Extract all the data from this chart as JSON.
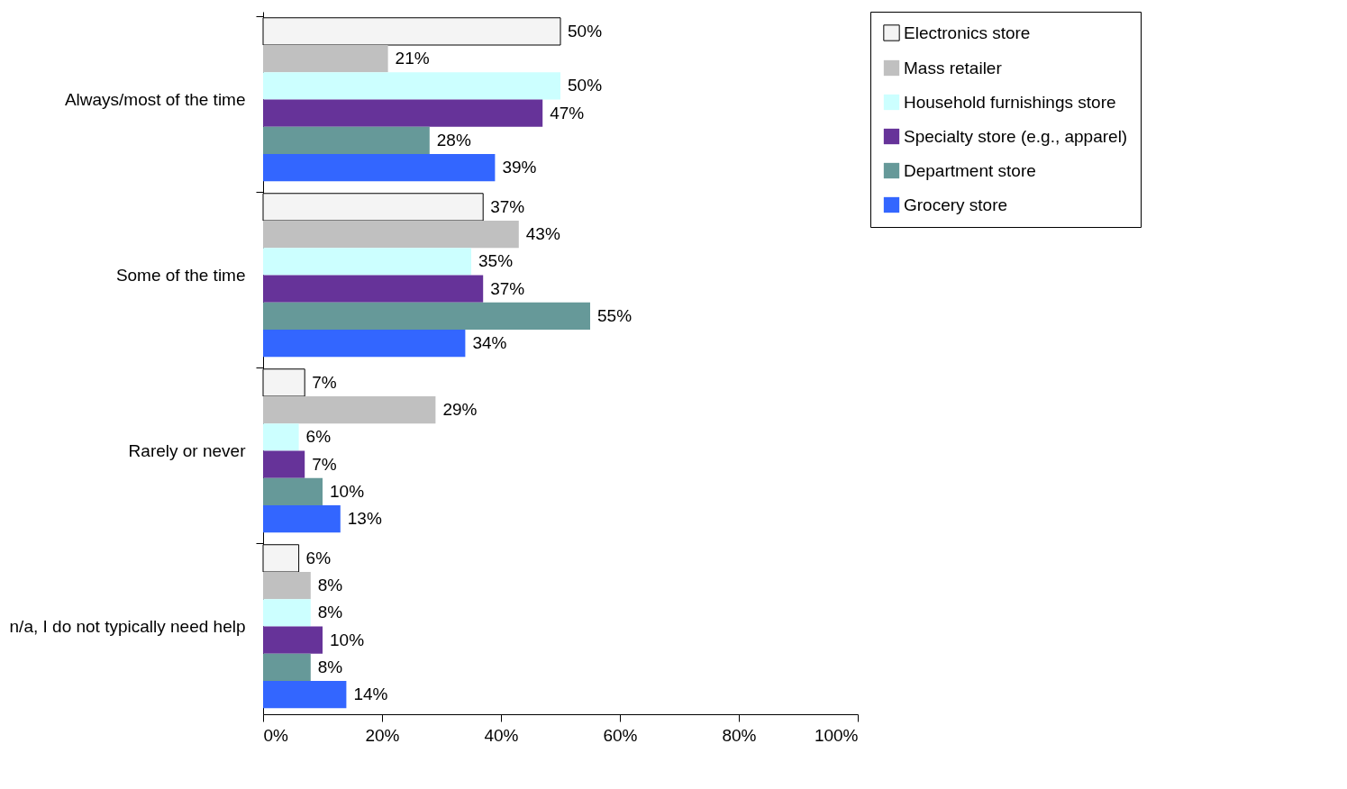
{
  "chart_data": {
    "type": "bar",
    "orientation": "horizontal",
    "categories": [
      "Always/most of the time",
      "Some of the time",
      "Rarely or never",
      "n/a, I do not typically need help"
    ],
    "series": [
      {
        "name": "Electronics store",
        "color": "#f4f4f4",
        "values": [
          50,
          37,
          7,
          6
        ],
        "value_labels": [
          "50%",
          "37%",
          "7%",
          "6%"
        ]
      },
      {
        "name": "Mass retailer",
        "color": "#c0c0c0",
        "values": [
          21,
          43,
          29,
          8
        ],
        "value_labels": [
          "21%",
          "43%",
          "29%",
          "8%"
        ]
      },
      {
        "name": "Household furnishings store",
        "color": "#ccffff",
        "values": [
          50,
          35,
          6,
          8
        ],
        "value_labels": [
          "50%",
          "35%",
          "6%",
          "8%"
        ]
      },
      {
        "name": "Specialty store (e.g., apparel)",
        "color": "#663399",
        "values": [
          47,
          37,
          7,
          10
        ],
        "value_labels": [
          "47%",
          "37%",
          "7%",
          "10%"
        ]
      },
      {
        "name": "Department store",
        "color": "#669999",
        "values": [
          28,
          55,
          10,
          8
        ],
        "value_labels": [
          "28%",
          "55%",
          "10%",
          "8%"
        ]
      },
      {
        "name": "Grocery store",
        "color": "#3366ff",
        "values": [
          39,
          34,
          13,
          14
        ],
        "value_labels": [
          "39%",
          "34%",
          "13%",
          "14%"
        ]
      }
    ],
    "xlim": [
      0,
      100
    ],
    "xticks": [
      {
        "value": 0,
        "label": "0%"
      },
      {
        "value": 20,
        "label": "20%"
      },
      {
        "value": 40,
        "label": "40%"
      },
      {
        "value": 60,
        "label": "60%"
      },
      {
        "value": 80,
        "label": "80%"
      },
      {
        "value": 100,
        "label": "100%"
      }
    ],
    "grid": false,
    "legend": "right"
  }
}
